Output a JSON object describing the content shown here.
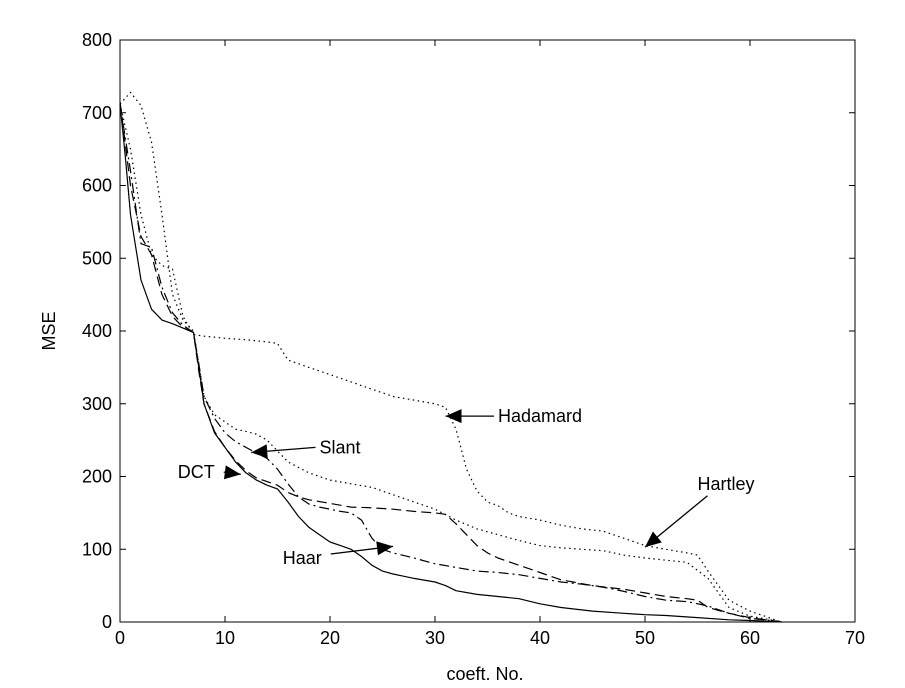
{
  "chart_data": {
    "type": "line",
    "title": "",
    "xlabel": "coeft. No.",
    "ylabel": "MSE",
    "xlim": [
      0,
      70
    ],
    "ylim": [
      0,
      800
    ],
    "xticks": [
      0,
      10,
      20,
      30,
      40,
      50,
      60,
      70
    ],
    "yticks": [
      0,
      100,
      200,
      300,
      400,
      500,
      600,
      700,
      800
    ],
    "grid": false,
    "series": [
      {
        "name": "Haar",
        "style": "solid",
        "points": [
          [
            0,
            712
          ],
          [
            0.5,
            640
          ],
          [
            1,
            560
          ],
          [
            2,
            470
          ],
          [
            3,
            430
          ],
          [
            4,
            415
          ],
          [
            5,
            410
          ],
          [
            6,
            404
          ],
          [
            7,
            398
          ],
          [
            7.5,
            350
          ],
          [
            8,
            300
          ],
          [
            9,
            260
          ],
          [
            10,
            240
          ],
          [
            11,
            220
          ],
          [
            12,
            205
          ],
          [
            13,
            195
          ],
          [
            14,
            188
          ],
          [
            15,
            183
          ],
          [
            16,
            165
          ],
          [
            17,
            145
          ],
          [
            18,
            130
          ],
          [
            19,
            120
          ],
          [
            20,
            110
          ],
          [
            21,
            105
          ],
          [
            22,
            100
          ],
          [
            23,
            90
          ],
          [
            24,
            78
          ],
          [
            25,
            70
          ],
          [
            26,
            66
          ],
          [
            27,
            63
          ],
          [
            28,
            60
          ],
          [
            30,
            55
          ],
          [
            31,
            50
          ],
          [
            32,
            43
          ],
          [
            34,
            38
          ],
          [
            36,
            35
          ],
          [
            38,
            32
          ],
          [
            40,
            25
          ],
          [
            42,
            20
          ],
          [
            45,
            15
          ],
          [
            48,
            12
          ],
          [
            50,
            10
          ],
          [
            52,
            9
          ],
          [
            55,
            6
          ],
          [
            58,
            3
          ],
          [
            60,
            2
          ],
          [
            62,
            1
          ],
          [
            63,
            0
          ]
        ]
      },
      {
        "name": "DCT",
        "style": "dashed",
        "points": [
          [
            0,
            715
          ],
          [
            1,
            600
          ],
          [
            2,
            530
          ],
          [
            3,
            505
          ],
          [
            4,
            450
          ],
          [
            5,
            420
          ],
          [
            6,
            405
          ],
          [
            7,
            398
          ],
          [
            7.5,
            345
          ],
          [
            8,
            300
          ],
          [
            9,
            262
          ],
          [
            10,
            240
          ],
          [
            11,
            222
          ],
          [
            12,
            208
          ],
          [
            13,
            198
          ],
          [
            14,
            193
          ],
          [
            15,
            188
          ],
          [
            16,
            178
          ],
          [
            17,
            172
          ],
          [
            18,
            168
          ],
          [
            20,
            163
          ],
          [
            22,
            158
          ],
          [
            24,
            157
          ],
          [
            26,
            155
          ],
          [
            28,
            152
          ],
          [
            30,
            150
          ],
          [
            31,
            148
          ],
          [
            32,
            135
          ],
          [
            33,
            120
          ],
          [
            34,
            105
          ],
          [
            35,
            95
          ],
          [
            36,
            88
          ],
          [
            38,
            78
          ],
          [
            40,
            68
          ],
          [
            42,
            58
          ],
          [
            45,
            50
          ],
          [
            48,
            45
          ],
          [
            50,
            40
          ],
          [
            52,
            35
          ],
          [
            54,
            32
          ],
          [
            55,
            30
          ],
          [
            56,
            20
          ],
          [
            58,
            12
          ],
          [
            60,
            6
          ],
          [
            62,
            2
          ],
          [
            63,
            0
          ]
        ]
      },
      {
        "name": "Slant",
        "style": "dash-dot",
        "points": [
          [
            0,
            712
          ],
          [
            1,
            620
          ],
          [
            2,
            520
          ],
          [
            3,
            515
          ],
          [
            4,
            460
          ],
          [
            5,
            425
          ],
          [
            6,
            408
          ],
          [
            7,
            398
          ],
          [
            7.5,
            355
          ],
          [
            8,
            310
          ],
          [
            9,
            280
          ],
          [
            10,
            260
          ],
          [
            11,
            248
          ],
          [
            12,
            240
          ],
          [
            13,
            232
          ],
          [
            14,
            225
          ],
          [
            15,
            210
          ],
          [
            16,
            190
          ],
          [
            17,
            172
          ],
          [
            18,
            162
          ],
          [
            19,
            158
          ],
          [
            20,
            155
          ],
          [
            21,
            152
          ],
          [
            22,
            150
          ],
          [
            23,
            140
          ],
          [
            24,
            115
          ],
          [
            25,
            100
          ],
          [
            26,
            95
          ],
          [
            28,
            88
          ],
          [
            30,
            80
          ],
          [
            32,
            75
          ],
          [
            34,
            70
          ],
          [
            36,
            68
          ],
          [
            38,
            65
          ],
          [
            40,
            60
          ],
          [
            42,
            55
          ],
          [
            44,
            52
          ],
          [
            46,
            48
          ],
          [
            48,
            42
          ],
          [
            50,
            35
          ],
          [
            52,
            30
          ],
          [
            54,
            28
          ],
          [
            56,
            22
          ],
          [
            58,
            12
          ],
          [
            60,
            5
          ],
          [
            62,
            2
          ],
          [
            63,
            0
          ]
        ]
      },
      {
        "name": "Hadamard",
        "style": "dotted",
        "points": [
          [
            0,
            712
          ],
          [
            1,
            650
          ],
          [
            2,
            560
          ],
          [
            3,
            505
          ],
          [
            4,
            490
          ],
          [
            5,
            485
          ],
          [
            6,
            420
          ],
          [
            7,
            395
          ],
          [
            8,
            393
          ],
          [
            10,
            390
          ],
          [
            12,
            388
          ],
          [
            14,
            385
          ],
          [
            15,
            383
          ],
          [
            16,
            360
          ],
          [
            17,
            355
          ],
          [
            18,
            350
          ],
          [
            20,
            340
          ],
          [
            22,
            330
          ],
          [
            24,
            320
          ],
          [
            26,
            310
          ],
          [
            28,
            305
          ],
          [
            30,
            300
          ],
          [
            31,
            295
          ],
          [
            32,
            265
          ],
          [
            33,
            210
          ],
          [
            34,
            180
          ],
          [
            35,
            165
          ],
          [
            36,
            160
          ],
          [
            37,
            150
          ],
          [
            38,
            145
          ],
          [
            40,
            140
          ],
          [
            42,
            133
          ],
          [
            44,
            128
          ],
          [
            46,
            125
          ],
          [
            48,
            115
          ],
          [
            50,
            105
          ],
          [
            52,
            100
          ],
          [
            54,
            95
          ],
          [
            55,
            92
          ],
          [
            56,
            70
          ],
          [
            58,
            30
          ],
          [
            60,
            15
          ],
          [
            62,
            5
          ],
          [
            63,
            0
          ]
        ]
      },
      {
        "name": "Hartley",
        "style": "dotted",
        "points": [
          [
            0,
            712
          ],
          [
            1,
            728
          ],
          [
            2,
            710
          ],
          [
            3,
            660
          ],
          [
            4,
            560
          ],
          [
            5,
            450
          ],
          [
            6,
            415
          ],
          [
            7,
            400
          ],
          [
            8,
            310
          ],
          [
            9,
            285
          ],
          [
            10,
            275
          ],
          [
            11,
            265
          ],
          [
            12,
            262
          ],
          [
            13,
            258
          ],
          [
            14,
            250
          ],
          [
            15,
            235
          ],
          [
            16,
            220
          ],
          [
            18,
            205
          ],
          [
            20,
            195
          ],
          [
            22,
            190
          ],
          [
            24,
            185
          ],
          [
            26,
            175
          ],
          [
            28,
            165
          ],
          [
            30,
            155
          ],
          [
            32,
            140
          ],
          [
            34,
            128
          ],
          [
            36,
            120
          ],
          [
            38,
            112
          ],
          [
            40,
            105
          ],
          [
            42,
            102
          ],
          [
            44,
            100
          ],
          [
            46,
            98
          ],
          [
            48,
            92
          ],
          [
            50,
            88
          ],
          [
            52,
            85
          ],
          [
            54,
            82
          ],
          [
            56,
            60
          ],
          [
            58,
            20
          ],
          [
            60,
            8
          ],
          [
            62,
            3
          ],
          [
            63,
            0
          ]
        ]
      }
    ],
    "annotations": [
      {
        "text": "Hadamard",
        "x": 36,
        "y": 283,
        "arrow_to": [
          31,
          283
        ]
      },
      {
        "text": "Slant",
        "x": 19,
        "y": 240,
        "arrow_to": [
          12.5,
          233
        ]
      },
      {
        "text": "DCT",
        "x": 5.5,
        "y": 206,
        "arrow_to": [
          11.5,
          203
        ]
      },
      {
        "text": "Hartley",
        "x": 55,
        "y": 190,
        "arrow_to": [
          50,
          103
        ]
      },
      {
        "text": "Haar",
        "x": 15.5,
        "y": 88,
        "arrow_to": [
          26,
          104
        ]
      }
    ]
  }
}
